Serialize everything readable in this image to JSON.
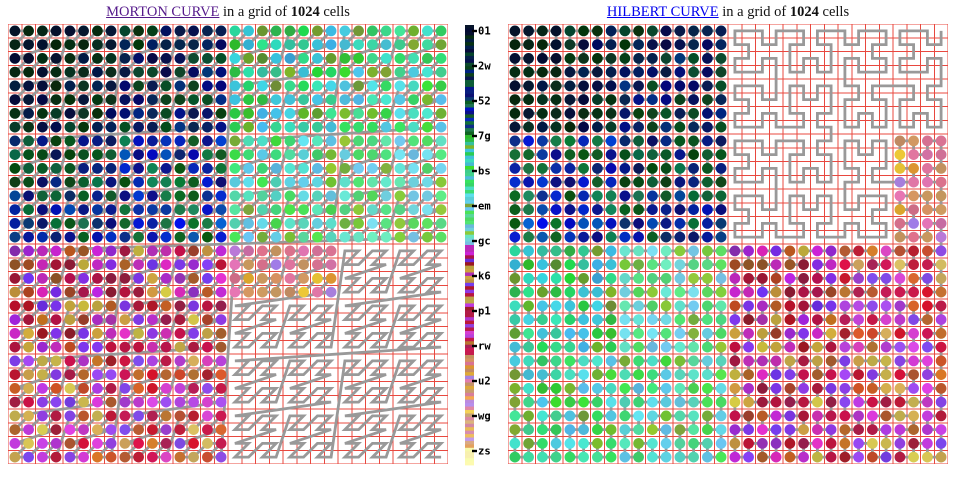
{
  "page": {
    "background": "#ffffff"
  },
  "panels": [
    {
      "key": "morton",
      "title": {
        "link_text": "MORTON CURVE",
        "mid_text": " in a grid of ",
        "count_text": "1024",
        "suffix_text": " cells",
        "link_color": "#551A8B"
      }
    },
    {
      "key": "hilbert",
      "title": {
        "link_text": "HILBERT CURVE",
        "mid_text": " in a grid of ",
        "count_text": "1024",
        "suffix_text": " cells",
        "link_color": "#0000EE"
      }
    }
  ],
  "colorbar": {
    "tick_labels": [
      "01",
      "2w",
      "52",
      "7g",
      "bs",
      "em",
      "gc",
      "k6",
      "p1",
      "rw",
      "u2",
      "wg",
      "zs"
    ]
  },
  "chart_data": [
    {
      "type": "scatter",
      "title": "MORTON CURVE in a grid of 1024 cells",
      "curve": "morton-z-order",
      "grid_rows": 32,
      "grid_cols": 32,
      "total_cells": 1024,
      "dots_drawn": 800,
      "start_cell_xy": [
        0,
        0
      ],
      "end_cell_xy": [
        31,
        31
      ],
      "quadrant_visit_order": [
        "NW",
        "NE",
        "SW",
        "SE"
      ],
      "path_color": "#999999",
      "grid_color": "#e8483f",
      "dot_radius_fraction_of_cell": 0.39,
      "colormap_progression": [
        "index 0: black",
        "first quarter: dark greens and navy/royal blues",
        "second quarter: greens, teals, cyans, light greens",
        "third quarter: dark reds, magentas, purples, violets, siennas",
        "last quarter: tans, oranges, golds, pinks, lavenders ending pale yellow"
      ],
      "legend_tick_labels": [
        "01",
        "2w",
        "52",
        "7g",
        "bs",
        "em",
        "gc",
        "k6",
        "p1",
        "rw",
        "u2",
        "wg",
        "zs"
      ]
    },
    {
      "type": "scatter",
      "title": "HILBERT CURVE in a grid of 1024 cells",
      "curve": "hilbert",
      "grid_rows": 32,
      "grid_cols": 32,
      "total_cells": 1024,
      "dots_drawn": 800,
      "start_cell_xy": [
        0,
        0
      ],
      "end_cell_xy": [
        31,
        0
      ],
      "quadrant_visit_order": [
        "NW",
        "SW",
        "SE",
        "NE"
      ],
      "path_color": "#999999",
      "grid_color": "#e8483f",
      "dot_radius_fraction_of_cell": 0.39,
      "colormap_progression": [
        "index 0: black",
        "first quarter: dark greens and navy/royal blues",
        "second quarter: greens, teals, cyans, light greens",
        "third quarter: dark reds, magentas, purples, violets, siennas",
        "last quarter: tans, oranges, golds, pinks, lavenders ending pale yellow"
      ],
      "legend_tick_labels": [
        "01",
        "2w",
        "52",
        "7g",
        "bs",
        "em",
        "gc",
        "k6",
        "p1",
        "rw",
        "u2",
        "wg",
        "zs"
      ]
    }
  ]
}
